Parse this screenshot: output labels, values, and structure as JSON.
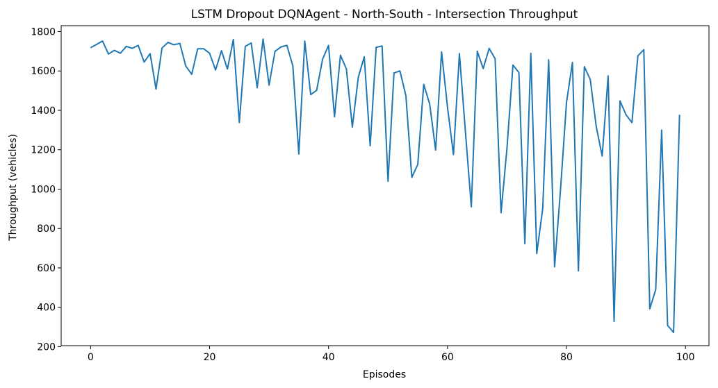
{
  "chart_data": {
    "type": "line",
    "title": "LSTM Dropout DQNAgent - North-South - Intersection Throughput",
    "xlabel": "Episodes",
    "ylabel": "Throughput (vehicles)",
    "xlim": [
      -4.95,
      103.95
    ],
    "ylim": [
      205,
      1830
    ],
    "xticks": [
      0,
      20,
      40,
      60,
      80,
      100
    ],
    "yticks": [
      200,
      400,
      600,
      800,
      1000,
      1200,
      1400,
      1600,
      1800
    ],
    "grid": false,
    "legend": "none",
    "series": [
      {
        "color": "#1f77b4",
        "x": [
          0,
          1,
          2,
          3,
          4,
          5,
          6,
          7,
          8,
          9,
          10,
          11,
          12,
          13,
          14,
          15,
          16,
          17,
          18,
          19,
          20,
          21,
          22,
          23,
          24,
          25,
          26,
          27,
          28,
          29,
          30,
          31,
          32,
          33,
          34,
          35,
          36,
          37,
          38,
          39,
          40,
          41,
          42,
          43,
          44,
          45,
          46,
          47,
          48,
          49,
          50,
          51,
          52,
          53,
          54,
          55,
          56,
          57,
          58,
          59,
          60,
          61,
          62,
          63,
          64,
          65,
          66,
          67,
          68,
          69,
          70,
          71,
          72,
          73,
          74,
          75,
          76,
          77,
          78,
          79,
          80,
          81,
          82,
          83,
          84,
          85,
          86,
          87,
          88,
          89,
          90,
          91,
          92,
          93,
          94,
          95,
          96,
          97,
          98,
          99
        ],
        "values": [
          1718,
          1735,
          1752,
          1686,
          1705,
          1690,
          1725,
          1715,
          1730,
          1645,
          1688,
          1508,
          1716,
          1745,
          1733,
          1740,
          1625,
          1583,
          1713,
          1713,
          1690,
          1605,
          1703,
          1610,
          1760,
          1338,
          1725,
          1742,
          1515,
          1762,
          1528,
          1700,
          1722,
          1730,
          1625,
          1178,
          1752,
          1480,
          1502,
          1660,
          1730,
          1367,
          1680,
          1610,
          1315,
          1568,
          1672,
          1220,
          1720,
          1727,
          1040,
          1590,
          1600,
          1475,
          1060,
          1125,
          1532,
          1432,
          1198,
          1697,
          1415,
          1175,
          1688,
          1295,
          910,
          1700,
          1612,
          1715,
          1662,
          880,
          1210,
          1630,
          1592,
          723,
          1690,
          673,
          900,
          1657,
          605,
          1000,
          1440,
          1643,
          585,
          1622,
          1556,
          1318,
          1168,
          1575,
          328,
          1448,
          1378,
          1338,
          1677,
          1708,
          392,
          490,
          1300,
          308,
          272,
          1378
        ]
      }
    ]
  }
}
